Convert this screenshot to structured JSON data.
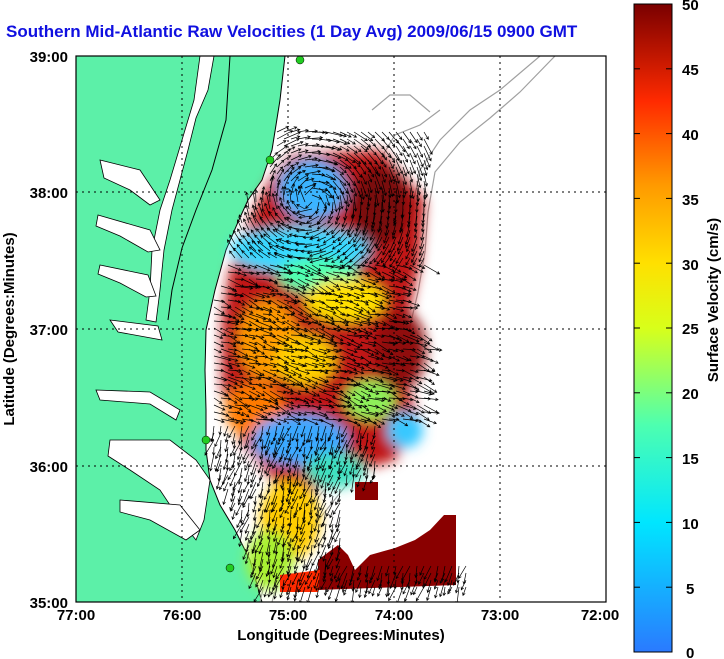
{
  "title": "Southern Mid-Atlantic Raw Velocities (1 Day Avg) 2009/06/15 0900 GMT",
  "axes": {
    "xlabel": "Longitude (Degrees:Minutes)",
    "ylabel": "Latitude (Degrees:Minutes)",
    "x_ticks": [
      "77:00",
      "76:00",
      "75:00",
      "74:00",
      "73:00",
      "72:00"
    ],
    "y_ticks": [
      "39:00",
      "38:00",
      "37:00",
      "36:00",
      "35:00"
    ]
  },
  "colorbar": {
    "label": "Surface Velocity (cm/s)",
    "ticks": [
      "50",
      "45",
      "40",
      "35",
      "30",
      "25",
      "20",
      "15",
      "10",
      "5",
      "0"
    ],
    "min": 0,
    "max": 50
  },
  "colors": {
    "land": "#5cf0a8",
    "title": "#1010e0",
    "station": "#22cc22"
  },
  "map": {
    "lon_range": [
      -77,
      -72
    ],
    "lat_range": [
      35,
      39
    ],
    "grid": "dotted",
    "features": [
      "coastline",
      "bathymetry-contours",
      "velocity-field",
      "current-vectors",
      "radar-stations"
    ]
  }
}
